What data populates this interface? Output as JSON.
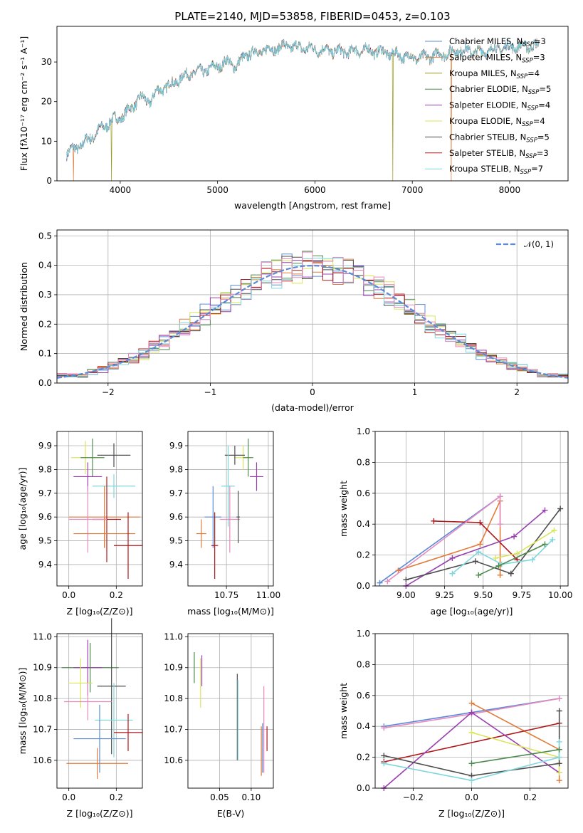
{
  "figure": {
    "title": "PLATE=2140, MJD=53858, FIBERID=0453, z=0.103"
  },
  "colors": {
    "Chabrier MILES": "#5b8bd6",
    "Salpeter MILES": "#e07b39",
    "Kroupa MILES": "#9a9a1f",
    "Chabrier ELODIE": "#4f8a4f",
    "Salpeter ELODIE": "#9a3fb0",
    "Kroupa ELODIE": "#d9e55a",
    "Chabrier STELIB": "#4d4d4d",
    "Salpeter STELIB": "#b0171c",
    "Kroupa STELIB": "#7fd6dd",
    "pink": "#e58bbf",
    "gray": "#999999"
  },
  "chart_data": [
    {
      "id": "spectrum",
      "type": "line",
      "xlabel": "wavelength [Angstrom, rest frame]",
      "ylabel": "Flux [fλ10⁻¹⁷ erg cm⁻² s⁻¹ A⁻¹]",
      "xlim": [
        3350,
        8600
      ],
      "ylim": [
        0,
        39
      ],
      "xticks": [
        4000,
        5000,
        6000,
        7000,
        8000
      ],
      "yticks": [
        0,
        10,
        20,
        30
      ],
      "legend_position": "top-right",
      "legend": [
        {
          "label": "Chabrier MILES, N",
          "sub": "SSP",
          "n": "=3",
          "color": "Chabrier MILES"
        },
        {
          "label": "Salpeter MILES, N",
          "sub": "SSP",
          "n": "=3",
          "color": "Salpeter MILES"
        },
        {
          "label": "Kroupa MILES, N",
          "sub": "SSP",
          "n": "=4",
          "color": "Kroupa MILES"
        },
        {
          "label": "Chabrier ELODIE, N",
          "sub": "SSP",
          "n": "=5",
          "color": "Chabrier ELODIE"
        },
        {
          "label": "Salpeter ELODIE, N",
          "sub": "SSP",
          "n": "=4",
          "color": "Salpeter ELODIE"
        },
        {
          "label": "Kroupa ELODIE, N",
          "sub": "SSP",
          "n": "=4",
          "color": "Kroupa ELODIE"
        },
        {
          "label": "Chabrier STELIB, N",
          "sub": "SSP",
          "n": "=5",
          "color": "Chabrier STELIB"
        },
        {
          "label": "Salpeter STELIB, N",
          "sub": "SSP",
          "n": "=3",
          "color": "Salpeter STELIB"
        },
        {
          "label": "Kroupa STELIB, N",
          "sub": "SSP",
          "n": "=7",
          "color": "Kroupa STELIB"
        }
      ],
      "continuum": [
        [
          3450,
          7
        ],
        [
          3600,
          9
        ],
        [
          3700,
          11
        ],
        [
          3800,
          13
        ],
        [
          3900,
          15
        ],
        [
          4000,
          16
        ],
        [
          4100,
          18
        ],
        [
          4200,
          21
        ],
        [
          4300,
          20
        ],
        [
          4400,
          23
        ],
        [
          4500,
          24
        ],
        [
          4700,
          27
        ],
        [
          4900,
          28
        ],
        [
          5000,
          29
        ],
        [
          5100,
          30
        ],
        [
          5200,
          29
        ],
        [
          5300,
          32
        ],
        [
          5500,
          33
        ],
        [
          5700,
          34
        ],
        [
          5900,
          33.5
        ],
        [
          6100,
          33
        ],
        [
          6300,
          32.5
        ],
        [
          6500,
          33
        ],
        [
          6700,
          32.5
        ],
        [
          6900,
          31.5
        ],
        [
          7100,
          31
        ],
        [
          7300,
          32
        ],
        [
          7500,
          33
        ],
        [
          7700,
          32.5
        ],
        [
          7900,
          33.5
        ],
        [
          8100,
          34
        ],
        [
          8300,
          34
        ]
      ],
      "dropouts": [
        [
          3520,
          "Salpeter MILES"
        ],
        [
          3910,
          "Kroupa MILES"
        ],
        [
          6800,
          "Kroupa MILES"
        ],
        [
          7400,
          "Salpeter MILES"
        ]
      ]
    },
    {
      "id": "residuals",
      "type": "histogram",
      "xlabel": "(data-model)/error",
      "ylabel": "Normed distribution",
      "xlim": [
        -2.5,
        2.5
      ],
      "ylim": [
        0,
        0.52
      ],
      "xticks": [
        -2,
        -1,
        0,
        1,
        2
      ],
      "yticks": [
        0.0,
        0.1,
        0.2,
        0.3,
        0.4,
        0.5
      ],
      "grid": true,
      "bin_width": 0.1,
      "legend_position": "top-right",
      "gaussian_label": "𝒩(0, 1)",
      "gaussian_color": "#5b8bd6"
    },
    {
      "id": "z-age",
      "type": "errorbar",
      "xlabel": "Z [log₁₀(Z/Z⊙)]",
      "ylabel": "age  [log₁₀(age/yr)]",
      "xlim": [
        -0.05,
        0.31
      ],
      "ylim": [
        9.31,
        9.96
      ],
      "xticks": [
        0.0,
        0.2
      ],
      "yticks": [
        9.4,
        9.5,
        9.6,
        9.7,
        9.8,
        9.9
      ],
      "grid": true,
      "points": [
        {
          "x": 0.07,
          "y": 9.85,
          "xe": 0.06,
          "ye": 0.07,
          "color": "Kroupa ELODIE"
        },
        {
          "x": 0.1,
          "y": 9.85,
          "xe": 0.05,
          "ye": 0.08,
          "color": "Chabrier ELODIE"
        },
        {
          "x": 0.08,
          "y": 9.77,
          "xe": 0.06,
          "ye": 0.06,
          "color": "Salpeter ELODIE"
        },
        {
          "x": 0.19,
          "y": 9.86,
          "xe": 0.07,
          "ye": 0.05,
          "color": "Chabrier STELIB"
        },
        {
          "x": 0.19,
          "y": 9.73,
          "xe": 0.09,
          "ye": 0.05,
          "color": "Kroupa STELIB"
        },
        {
          "x": 0.15,
          "y": 9.6,
          "xe": 0.15,
          "ye": 0.13,
          "color": "Salpeter MILES"
        },
        {
          "x": 0.16,
          "y": 9.59,
          "xe": 0.06,
          "ye": 0.18,
          "color": "Salpeter STELIB"
        },
        {
          "x": 0.08,
          "y": 9.59,
          "xe": 0.08,
          "ye": 0.14,
          "color": "pink"
        },
        {
          "x": 0.15,
          "y": 9.53,
          "xe": 0.13,
          "ye": 0.06,
          "color": "Salpeter MILES"
        },
        {
          "x": 0.25,
          "y": 9.48,
          "xe": 0.06,
          "ye": 0.14,
          "color": "Salpeter STELIB"
        }
      ]
    },
    {
      "id": "mass-age",
      "type": "errorbar",
      "xlabel": "mass [log₁₀(M/M⊙)]",
      "ylabel": "",
      "xlim": [
        10.52,
        11.03
      ],
      "ylim": [
        9.31,
        9.96
      ],
      "xticks": [
        10.75,
        11.0
      ],
      "yticks": [
        9.4,
        9.5,
        9.6,
        9.7,
        9.8,
        9.9
      ],
      "grid": true,
      "points": [
        {
          "x": 10.85,
          "y": 9.85,
          "xe": 0.05,
          "ye": 0.05,
          "color": "Kroupa ELODIE"
        },
        {
          "x": 10.88,
          "y": 9.85,
          "xe": 0.03,
          "ye": 0.08,
          "color": "Chabrier ELODIE"
        },
        {
          "x": 10.93,
          "y": 9.77,
          "xe": 0.04,
          "ye": 0.06,
          "color": "Salpeter ELODIE"
        },
        {
          "x": 10.8,
          "y": 9.86,
          "xe": 0.06,
          "ye": 0.04,
          "color": "Chabrier STELIB"
        },
        {
          "x": 10.76,
          "y": 9.73,
          "xe": 0.04,
          "ye": 0.17,
          "color": "Kroupa STELIB"
        },
        {
          "x": 10.67,
          "y": 9.6,
          "xe": 0.05,
          "ye": 0.13,
          "color": "Chabrier MILES"
        },
        {
          "x": 10.77,
          "y": 9.59,
          "xe": 0.06,
          "ye": 0.14,
          "color": "pink"
        },
        {
          "x": 10.82,
          "y": 9.6,
          "xe": 0.01,
          "ye": 0.11,
          "color": "Chabrier STELIB"
        },
        {
          "x": 10.6,
          "y": 9.53,
          "xe": 0.03,
          "ye": 0.06,
          "color": "Salpeter MILES"
        },
        {
          "x": 10.68,
          "y": 9.48,
          "xe": 0.02,
          "ye": 0.14,
          "color": "Salpeter STELIB"
        }
      ]
    },
    {
      "id": "age-weight",
      "type": "line",
      "xlabel": "age  [log₁₀(age/yr)]",
      "ylabel": "mass weight",
      "xlim": [
        8.8,
        10.05
      ],
      "ylim": [
        0,
        1
      ],
      "xticks": [
        9.0,
        9.25,
        9.5,
        9.75,
        10.0
      ],
      "yticks": [
        0.0,
        0.2,
        0.4,
        0.6,
        0.8,
        1.0
      ],
      "grid": true,
      "series": [
        {
          "color": "Chabrier MILES",
          "x": [
            8.83,
            9.61
          ],
          "y": [
            0.02,
            0.58
          ]
        },
        {
          "color": "Salpeter MILES",
          "x": [
            8.95,
            9.48,
            9.61,
            9.61
          ],
          "y": [
            0.1,
            0.27,
            0.55,
            0.07
          ]
        },
        {
          "color": "Salpeter STELIB",
          "x": [
            9.18,
            9.48,
            9.72
          ],
          "y": [
            0.42,
            0.41,
            0.17
          ]
        },
        {
          "color": "Salpeter ELODIE",
          "x": [
            9.0,
            9.3,
            9.7,
            9.9
          ],
          "y": [
            0.0,
            0.18,
            0.32,
            0.49
          ]
        },
        {
          "color": "Chabrier STELIB",
          "x": [
            9.0,
            9.45,
            9.68,
            10.0
          ],
          "y": [
            0.04,
            0.16,
            0.08,
            0.5
          ]
        },
        {
          "color": "Kroupa ELODIE",
          "x": [
            9.58,
            9.72,
            9.96
          ],
          "y": [
            0.18,
            0.21,
            0.36
          ]
        },
        {
          "color": "Kroupa STELIB",
          "x": [
            9.3,
            9.47,
            9.62,
            9.82,
            9.95
          ],
          "y": [
            0.08,
            0.22,
            0.14,
            0.17,
            0.3
          ]
        },
        {
          "color": "Chabrier ELODIE",
          "x": [
            9.47,
            9.6,
            9.9
          ],
          "y": [
            0.07,
            0.13,
            0.27
          ]
        },
        {
          "color": "pink",
          "x": [
            8.88,
            9.61,
            9.61
          ],
          "y": [
            0.03,
            0.58,
            0.4
          ]
        }
      ]
    },
    {
      "id": "z-mass",
      "type": "errorbar",
      "xlabel": "Z [log₁₀(Z/Z⊙)]",
      "ylabel": "mass [log₁₀(M/M⊙)]",
      "xlim": [
        -0.05,
        0.31
      ],
      "ylim": [
        10.51,
        11.01
      ],
      "xticks": [
        0.0,
        0.2
      ],
      "yticks": [
        10.6,
        10.7,
        10.8,
        10.9,
        11.0
      ],
      "grid": true,
      "points": [
        {
          "x": 0.09,
          "y": 10.9,
          "xe": 0.12,
          "ye": 0.08,
          "color": "Chabrier ELODIE"
        },
        {
          "x": 0.08,
          "y": 10.9,
          "xe": 0.06,
          "ye": 0.09,
          "color": "Salpeter ELODIE"
        },
        {
          "x": 0.05,
          "y": 10.85,
          "xe": 0.05,
          "ye": 0.08,
          "color": "Kroupa ELODIE"
        },
        {
          "x": 0.18,
          "y": 10.84,
          "xe": 0.06,
          "ye": 0.22,
          "color": "Chabrier STELIB"
        },
        {
          "x": 0.08,
          "y": 10.79,
          "xe": 0.1,
          "ye": 0.06,
          "color": "pink"
        },
        {
          "x": 0.19,
          "y": 10.73,
          "xe": 0.08,
          "ye": 0.12,
          "color": "Kroupa STELIB"
        },
        {
          "x": 0.13,
          "y": 10.67,
          "xe": 0.11,
          "ye": 0.11,
          "color": "Chabrier MILES"
        },
        {
          "x": 0.25,
          "y": 10.69,
          "xe": 0.06,
          "ye": 0.06,
          "color": "Salpeter STELIB"
        },
        {
          "x": 0.12,
          "y": 10.59,
          "xe": 0.13,
          "ye": 0.05,
          "color": "Salpeter MILES"
        }
      ]
    },
    {
      "id": "ebv-mass",
      "type": "errorbar",
      "xlabel": "E(B-V)",
      "ylabel": "",
      "xlim": [
        0.0,
        0.135
      ],
      "ylim": [
        10.51,
        11.01
      ],
      "xticks": [
        0.05,
        0.1
      ],
      "yticks": [
        10.6,
        10.7,
        10.8,
        10.9,
        11.0
      ],
      "grid": true,
      "points": [
        {
          "x": 0.01,
          "y": 10.9,
          "xe": 0,
          "ye": 0.05,
          "color": "Chabrier ELODIE"
        },
        {
          "x": 0.02,
          "y": 10.85,
          "xe": 0,
          "ye": 0.08,
          "color": "Kroupa ELODIE"
        },
        {
          "x": 0.022,
          "y": 10.89,
          "xe": 0,
          "ye": 0.05,
          "color": "Salpeter ELODIE"
        },
        {
          "x": 0.078,
          "y": 10.74,
          "xe": 0,
          "ye": 0.14,
          "color": "Chabrier STELIB"
        },
        {
          "x": 0.079,
          "y": 10.73,
          "xe": 0,
          "ye": 0.13,
          "color": "Kroupa STELIB"
        },
        {
          "x": 0.12,
          "y": 10.7,
          "xe": 0,
          "ye": 0.14,
          "color": "pink"
        },
        {
          "x": 0.118,
          "y": 10.64,
          "xe": 0,
          "ye": 0.08,
          "color": "Chabrier MILES"
        },
        {
          "x": 0.116,
          "y": 10.63,
          "xe": 0,
          "ye": 0.08,
          "color": "Salpeter MILES"
        },
        {
          "x": 0.125,
          "y": 10.67,
          "xe": 0,
          "ye": 0.04,
          "color": "Salpeter STELIB"
        }
      ]
    },
    {
      "id": "z-weight",
      "type": "line",
      "xlabel": "Z [log₁₀(Z/Z⊙)]",
      "ylabel": "mass weight",
      "xlim": [
        -0.33,
        0.33
      ],
      "ylim": [
        0,
        1
      ],
      "xticks": [
        -0.2,
        0.0,
        0.2
      ],
      "yticks": [
        0.0,
        0.2,
        0.4,
        0.6,
        0.8,
        1.0
      ],
      "grid": true,
      "series": [
        {
          "color": "Chabrier MILES",
          "x": [
            -0.3,
            0.0,
            0.3
          ],
          "y": [
            0.4,
            0.49,
            0.58
          ]
        },
        {
          "color": "pink",
          "x": [
            -0.3,
            0.0,
            0.3
          ],
          "y": [
            0.39,
            0.48,
            0.58
          ]
        },
        {
          "color": "Salpeter MILES",
          "x": [
            0.0,
            0.3,
            0.3
          ],
          "y": [
            0.55,
            0.25,
            0.05
          ]
        },
        {
          "color": "Salpeter STELIB",
          "x": [
            -0.3,
            0.3
          ],
          "y": [
            0.17,
            0.42
          ]
        },
        {
          "color": "Salpeter ELODIE",
          "x": [
            -0.3,
            0.0,
            0.3
          ],
          "y": [
            0.0,
            0.49,
            0.1
          ]
        },
        {
          "color": "Kroupa ELODIE",
          "x": [
            0.0,
            0.3,
            0.3
          ],
          "y": [
            0.36,
            0.2,
            0.1
          ]
        },
        {
          "color": "Chabrier STELIB",
          "x": [
            -0.3,
            0.0,
            0.3,
            0.3
          ],
          "y": [
            0.21,
            0.08,
            0.16,
            0.5
          ]
        },
        {
          "color": "Kroupa STELIB",
          "x": [
            -0.3,
            0.0,
            0.3,
            0.3
          ],
          "y": [
            0.16,
            0.05,
            0.2,
            0.3
          ]
        },
        {
          "color": "Chabrier ELODIE",
          "x": [
            0.0,
            0.3
          ],
          "y": [
            0.16,
            0.25
          ]
        }
      ]
    }
  ]
}
